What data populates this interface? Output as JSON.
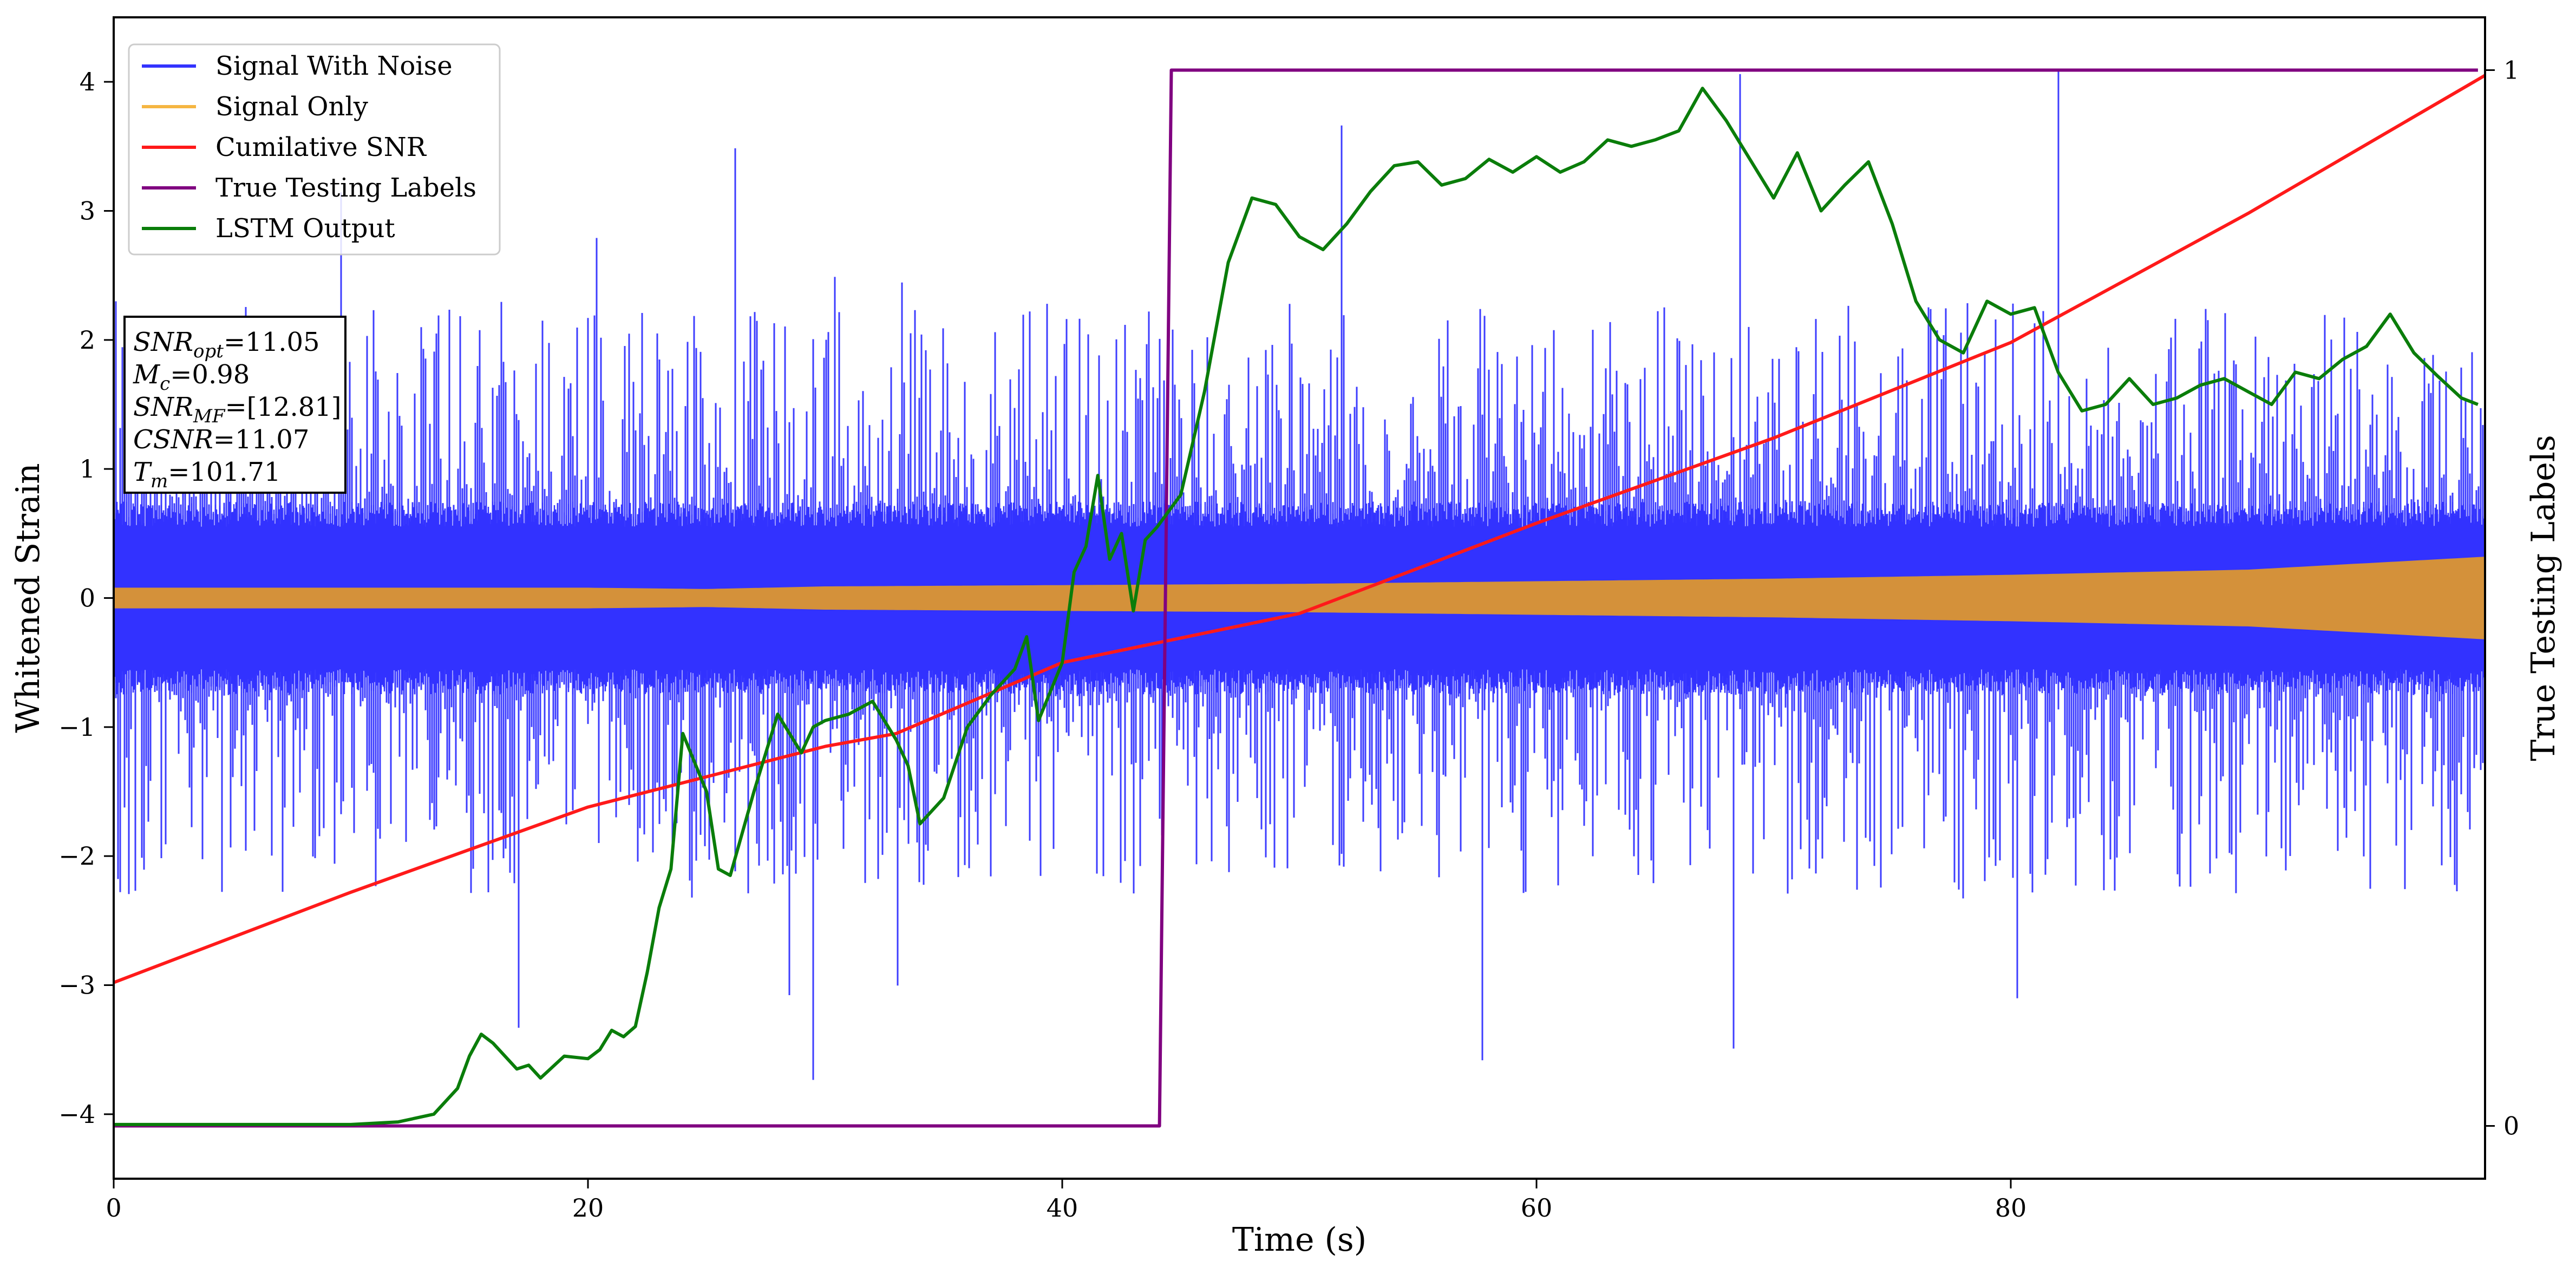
{
  "chart_data": {
    "type": "line",
    "title": "",
    "xlabel": "Time (s)",
    "ylabel": "Whitened Strain",
    "y2label": "True Testing Labels",
    "xlim": [
      0,
      100
    ],
    "ylim": [
      -4.5,
      4.5
    ],
    "y2lim": [
      -0.05,
      1.05
    ],
    "x_ticks": [
      0,
      20,
      40,
      60,
      80
    ],
    "y_ticks": [
      -4,
      -3,
      -2,
      -1,
      0,
      1,
      2,
      3,
      4
    ],
    "y2_ticks": [
      0,
      1
    ],
    "grid": false,
    "legend": {
      "placement": "top-left",
      "entries": [
        {
          "name": "Signal With Noise",
          "color": "#3333ff"
        },
        {
          "name": "Signal Only",
          "color": "#f5b642"
        },
        {
          "name": "Cumilative SNR",
          "color": "#ff1a1a"
        },
        {
          "name": "True Testing Labels",
          "color": "#800080"
        },
        {
          "name": "LSTM Output",
          "color": "#0a7d0a"
        }
      ]
    },
    "annotation_box": {
      "lines": [
        {
          "main": "SNR",
          "sub": "opt",
          "value": "=11.05"
        },
        {
          "main": "M",
          "sub": "c",
          "value": "=0.98"
        },
        {
          "main": "SNR",
          "sub": "MF",
          "value": "=[12.81]"
        },
        {
          "main": "CSNR",
          "sub": "",
          "value": "=11.07"
        },
        {
          "main": "T",
          "sub": "m",
          "value": "=101.71"
        }
      ]
    },
    "series": [
      {
        "name": "Signal With Noise",
        "axis": "left",
        "color": "#3333ff",
        "noise_envelope": {
          "core": 0.65,
          "typical_peak": 2.3,
          "extreme_peak": 4.1
        }
      },
      {
        "name": "Signal Only",
        "axis": "left",
        "color": "#d4913a",
        "x": [
          0,
          10,
          20,
          25,
          30,
          40,
          50,
          60,
          70,
          80,
          90,
          100
        ],
        "amplitude": [
          0.08,
          0.08,
          0.08,
          0.07,
          0.09,
          0.1,
          0.11,
          0.13,
          0.15,
          0.18,
          0.22,
          0.32
        ]
      },
      {
        "name": "Cumilative SNR",
        "axis": "left",
        "color": "#ff1a1a",
        "x": [
          0,
          10,
          20,
          30,
          33,
          40,
          50,
          60,
          70,
          80,
          90,
          100
        ],
        "y": [
          -2.98,
          -2.28,
          -1.62,
          -1.15,
          -1.05,
          -0.5,
          -0.12,
          0.58,
          1.24,
          1.98,
          2.98,
          4.05
        ]
      },
      {
        "name": "True Testing Labels",
        "axis": "right",
        "color": "#800080",
        "x": [
          0,
          44.1,
          44.6,
          99.7
        ],
        "y": [
          0,
          0,
          1,
          1
        ]
      },
      {
        "name": "LSTM Output",
        "axis": "left",
        "color": "#0a7d0a",
        "x": [
          0,
          10,
          12,
          13.5,
          14.5,
          15,
          15.5,
          16,
          17,
          17.5,
          18,
          19,
          20,
          20.5,
          21,
          21.5,
          22,
          22.5,
          23,
          23.5,
          24,
          25,
          25.5,
          26,
          27,
          28,
          29,
          29.5,
          30,
          31,
          32,
          33,
          33.5,
          34,
          35,
          36,
          37,
          38,
          38.5,
          39,
          40,
          40.5,
          41,
          41.5,
          42,
          42.5,
          43,
          43.5,
          44,
          45,
          46,
          47,
          48,
          49,
          50,
          51,
          52,
          53,
          54,
          55,
          56,
          57,
          58,
          59,
          60,
          61,
          62,
          63,
          64,
          65,
          66,
          67,
          68,
          69,
          70,
          71,
          72,
          73,
          74,
          75,
          76,
          77,
          78,
          79,
          80,
          81,
          82,
          83,
          84,
          85,
          86,
          87,
          88,
          89,
          90,
          91,
          92,
          93,
          94,
          95,
          96,
          97,
          98,
          99,
          99.7
        ],
        "y": [
          -4.08,
          -4.08,
          -4.06,
          -4.0,
          -3.8,
          -3.55,
          -3.38,
          -3.45,
          -3.65,
          -3.62,
          -3.72,
          -3.55,
          -3.57,
          -3.5,
          -3.35,
          -3.4,
          -3.32,
          -2.9,
          -2.4,
          -2.1,
          -1.05,
          -1.5,
          -2.1,
          -2.15,
          -1.5,
          -0.9,
          -1.2,
          -1.0,
          -0.95,
          -0.9,
          -0.8,
          -1.1,
          -1.3,
          -1.75,
          -1.55,
          -1.0,
          -0.75,
          -0.55,
          -0.3,
          -0.95,
          -0.5,
          0.2,
          0.4,
          0.95,
          0.3,
          0.5,
          -0.1,
          0.45,
          0.55,
          0.8,
          1.6,
          2.6,
          3.1,
          3.05,
          2.8,
          2.7,
          2.9,
          3.15,
          3.35,
          3.38,
          3.2,
          3.25,
          3.4,
          3.3,
          3.42,
          3.3,
          3.38,
          3.55,
          3.5,
          3.55,
          3.62,
          3.95,
          3.7,
          3.4,
          3.1,
          3.45,
          3.0,
          3.2,
          3.38,
          2.9,
          2.3,
          2.0,
          1.9,
          2.3,
          2.2,
          2.25,
          1.75,
          1.45,
          1.5,
          1.7,
          1.5,
          1.55,
          1.65,
          1.7,
          1.6,
          1.5,
          1.75,
          1.7,
          1.85,
          1.95,
          2.2,
          1.9,
          1.72,
          1.55,
          1.5
        ]
      }
    ]
  }
}
